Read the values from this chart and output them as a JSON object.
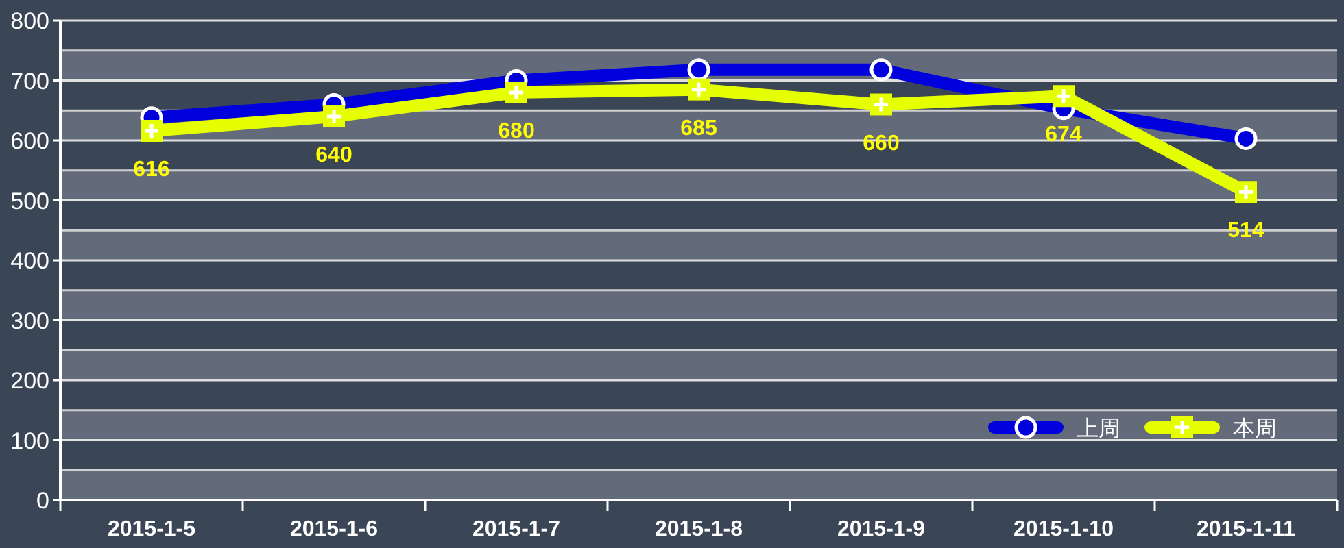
{
  "chart_data": {
    "type": "line",
    "categories": [
      "2015-1-5",
      "2015-1-6",
      "2015-1-7",
      "2015-1-8",
      "2015-1-9",
      "2015-1-10",
      "2015-1-11"
    ],
    "series": [
      {
        "name": "上周",
        "color": "#0000dd",
        "values": [
          638,
          660,
          700,
          718,
          718,
          653,
          603
        ],
        "marker": "circle"
      },
      {
        "name": "本周",
        "color": "#e5ff00",
        "values": [
          616,
          640,
          680,
          685,
          660,
          674,
          514
        ],
        "marker": "square",
        "value_labels": [
          "616",
          "640",
          "680",
          "685",
          "660",
          "674",
          "514"
        ]
      }
    ],
    "ylim": [
      0,
      800
    ],
    "yticks": [
      0,
      100,
      200,
      300,
      400,
      500,
      600,
      700,
      800
    ],
    "grid": "y",
    "legend": "bottom right"
  }
}
